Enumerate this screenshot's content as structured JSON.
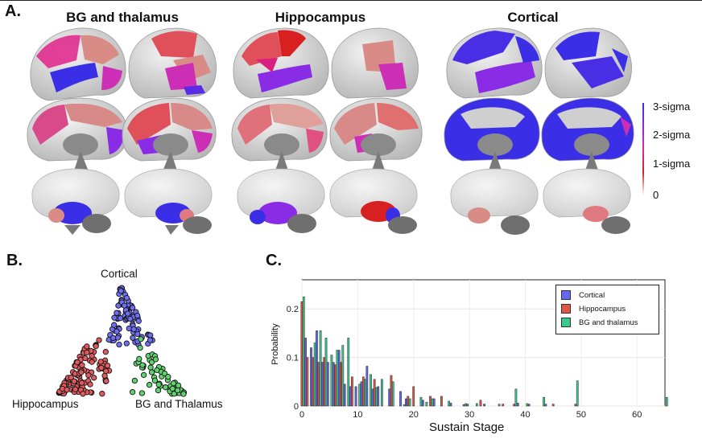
{
  "panels": {
    "a_label": "A.",
    "b_label": "B.",
    "c_label": "C."
  },
  "brain": {
    "titles": [
      "BG and thalamus",
      "Hippocampus",
      "Cortical"
    ],
    "colorbar": {
      "labels": [
        "3-sigma",
        "2-sigma",
        "1-sigma",
        "0"
      ],
      "colors": [
        "#3a2ee6",
        "#e0269a",
        "#d32222",
        "#ffffff"
      ]
    }
  },
  "triangle": {
    "top_label": "Cortical",
    "left_label": "Hippocampus",
    "right_label": "BG and Thalamus",
    "colors": {
      "cortical": "#6f6ff2",
      "hippocampus": "#e05a5e",
      "bg": "#5fd36f"
    }
  },
  "chart_data": {
    "type": "bar",
    "xlabel": "Sustain Stage",
    "ylabel": "Probability",
    "xlim": [
      0,
      65
    ],
    "ylim": [
      0,
      0.26
    ],
    "xticks": [
      "0",
      "10",
      "20",
      "30",
      "40",
      "50",
      "60"
    ],
    "yticks": [
      "0",
      "0.1",
      "0.2"
    ],
    "legend_position": "top-right",
    "series": [
      {
        "name": "Cortical",
        "color": "#6666ee",
        "points": [
          [
            1,
            0.14
          ],
          [
            2,
            0.12
          ],
          [
            3,
            0.155
          ],
          [
            4,
            0.09
          ],
          [
            5,
            0.09
          ],
          [
            6,
            0.09
          ],
          [
            7,
            0.115
          ],
          [
            8,
            0.045
          ],
          [
            9,
            0.04
          ],
          [
            10,
            0.04
          ],
          [
            11,
            0.05
          ],
          [
            12,
            0.082
          ],
          [
            13,
            0.035
          ],
          [
            14,
            0.04
          ],
          [
            16,
            0.035
          ],
          [
            18,
            0.03
          ],
          [
            19,
            0.015
          ],
          [
            22,
            0.012
          ],
          [
            24,
            0.015
          ],
          [
            27,
            0.006
          ],
          [
            30,
            0.004
          ],
          [
            33,
            0.004
          ],
          [
            39,
            0.006
          ],
          [
            41,
            0.004
          ],
          [
            44,
            0.004
          ]
        ]
      },
      {
        "name": "Hippocampus",
        "color": "#e05545",
        "points": [
          [
            0,
            0.215
          ],
          [
            1,
            0.1
          ],
          [
            2,
            0.1
          ],
          [
            3,
            0.09
          ],
          [
            4,
            0.1
          ],
          [
            6,
            0.085
          ],
          [
            7,
            0.09
          ],
          [
            9,
            0.06
          ],
          [
            11,
            0.06
          ],
          [
            13,
            0.055
          ],
          [
            16,
            0.063
          ],
          [
            19,
            0.02
          ],
          [
            20,
            0.04
          ],
          [
            23,
            0.02
          ],
          [
            25,
            0.02
          ],
          [
            29,
            0.003
          ],
          [
            32,
            0.012
          ],
          [
            36,
            0.004
          ],
          [
            38,
            0.004
          ],
          [
            45,
            0.004
          ],
          [
            49,
            0.004
          ]
        ]
      },
      {
        "name": "BG and thalamus",
        "color": "#3cc98d",
        "points": [
          [
            0,
            0.225
          ],
          [
            2,
            0.13
          ],
          [
            3,
            0.155
          ],
          [
            4,
            0.14
          ],
          [
            5,
            0.105
          ],
          [
            6,
            0.115
          ],
          [
            7,
            0.125
          ],
          [
            8,
            0.14
          ],
          [
            10,
            0.045
          ],
          [
            11,
            0.055
          ],
          [
            12,
            0.065
          ],
          [
            13,
            0.038
          ],
          [
            14,
            0.055
          ],
          [
            16,
            0.05
          ],
          [
            18,
            0.003
          ],
          [
            19,
            0.015
          ],
          [
            21,
            0.018
          ],
          [
            22,
            0.008
          ],
          [
            23,
            0.015
          ],
          [
            26,
            0.01
          ],
          [
            29,
            0.005
          ],
          [
            31,
            0.005
          ],
          [
            35,
            0.004
          ],
          [
            38,
            0.035
          ],
          [
            40,
            0.005
          ],
          [
            43,
            0.018
          ],
          [
            49,
            0.052
          ],
          [
            65,
            0.018
          ]
        ]
      }
    ]
  }
}
